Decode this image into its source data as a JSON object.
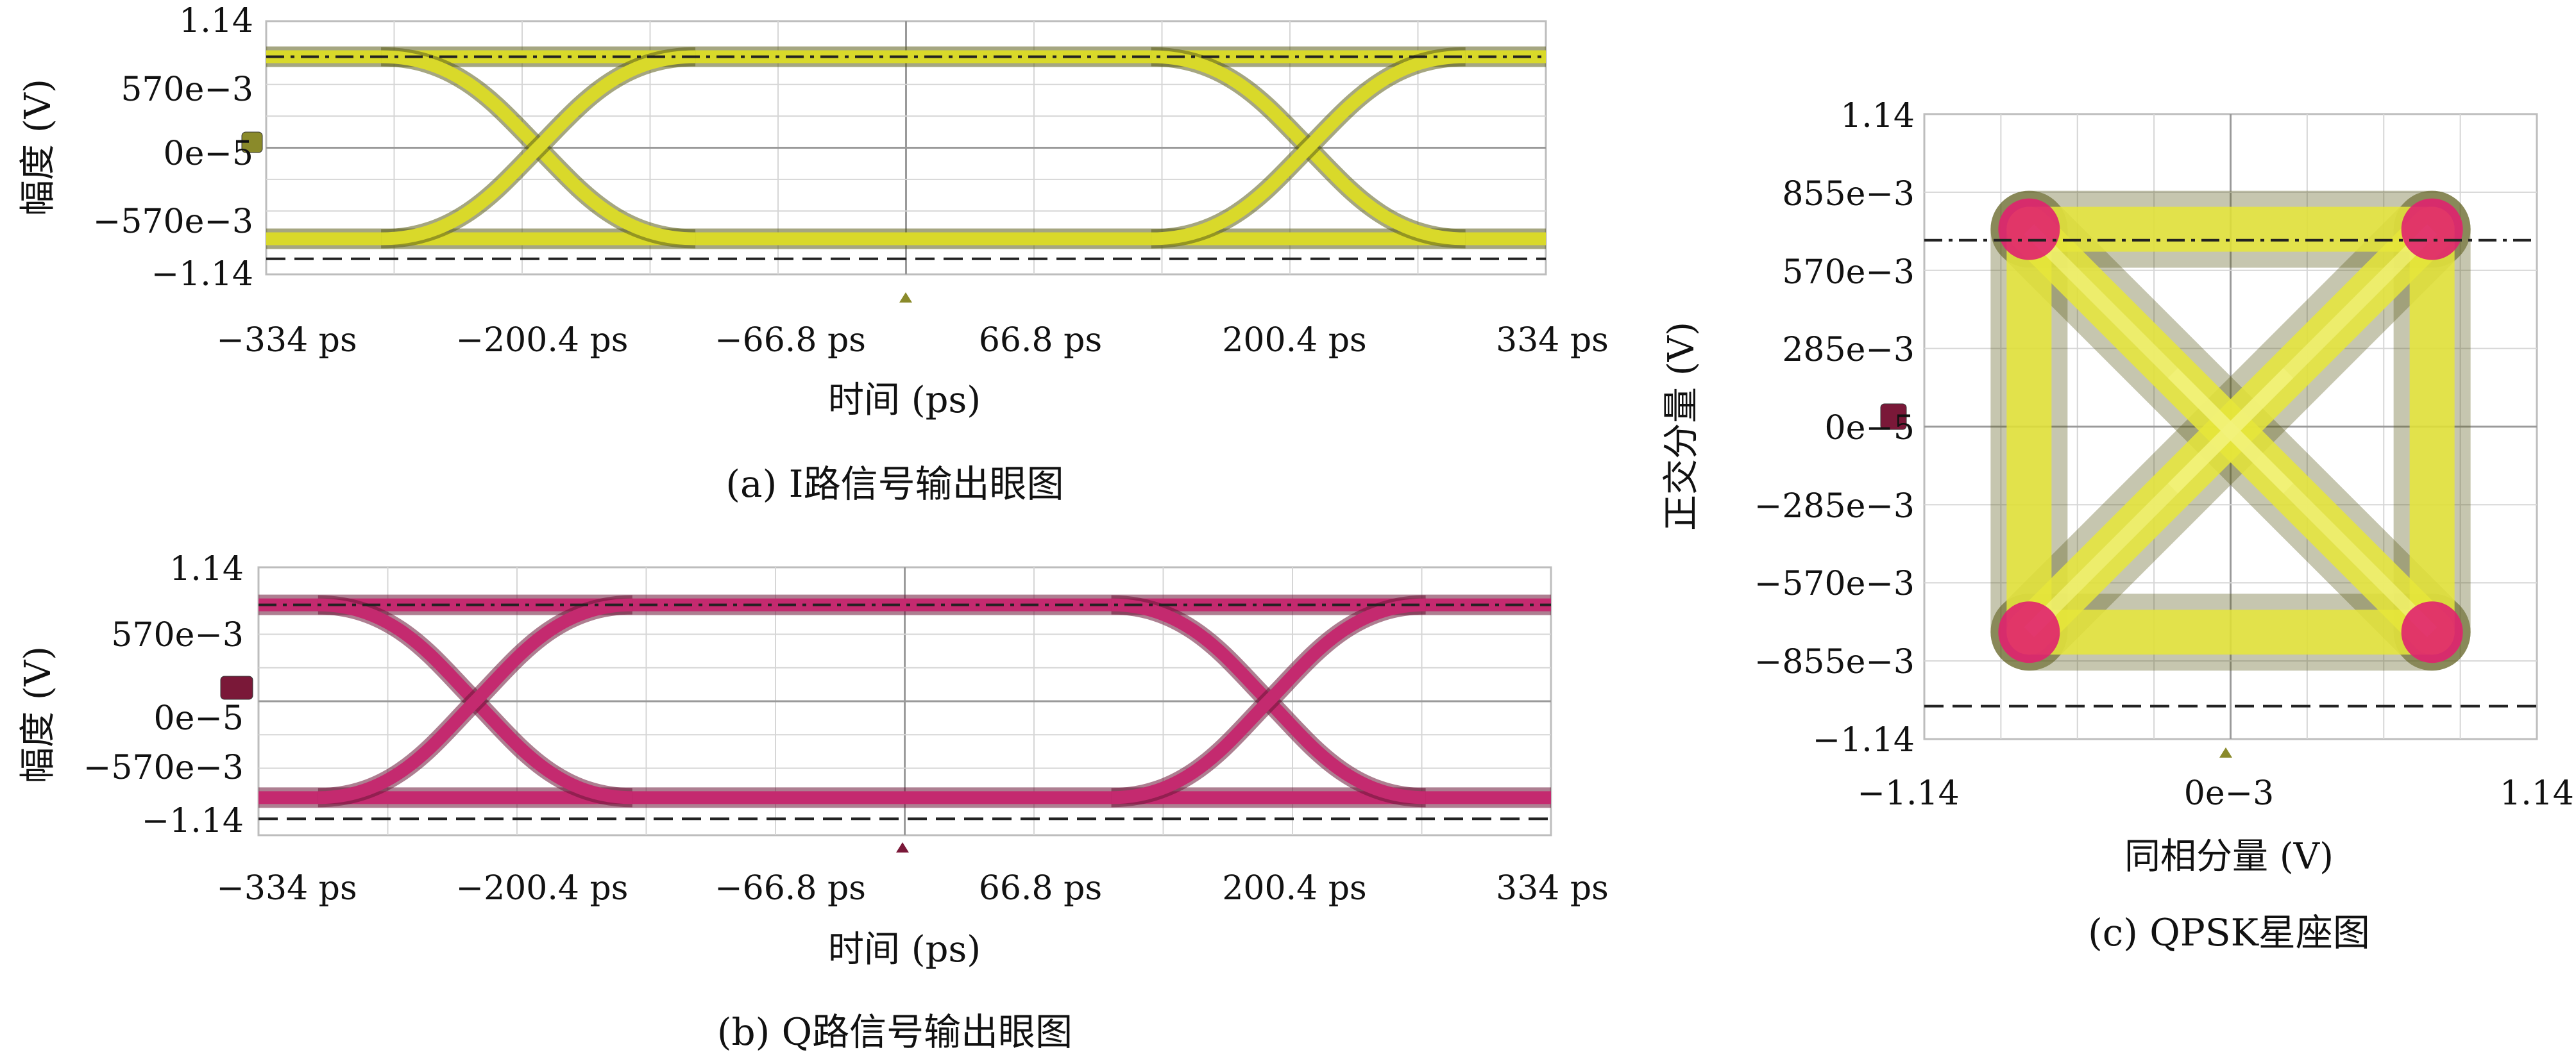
{
  "colors": {
    "eye_i": "#d9d92a",
    "eye_i_dark": "#5b5c1a",
    "eye_q": "#c42a6f",
    "eye_q_dark": "#6a1537",
    "constellation_fill": "#e6e63a",
    "constellation_edge": "#5b5c1a",
    "constellation_points": "#e0226e",
    "marker_i": "#8a8a2a",
    "marker_q": "#7a1838"
  },
  "chart_data": [
    {
      "id": "eye_i",
      "type": "eye_diagram",
      "caption": "(a) I路信号输出眼图",
      "xlabel": "时间 (ps)",
      "ylabel": "幅度 (V)",
      "xticks": [
        "−334 ps",
        "−200.4 ps",
        "−66.8 ps",
        "66.8 ps",
        "200.4 ps",
        "334 ps"
      ],
      "yticks": [
        "1.14",
        "570e−3",
        "0e−5",
        "−570e−3",
        "−1.14"
      ],
      "xlim": [
        -334,
        334
      ],
      "ylim": [
        -1.14,
        1.14
      ],
      "levels": [
        0.82,
        -0.82
      ],
      "crossings_ps": [
        -192,
        210
      ],
      "ref_lines": [
        {
          "y": 0.82,
          "style": "dashdot"
        },
        {
          "y": -1.0,
          "style": "dashed"
        }
      ],
      "grid": true
    },
    {
      "id": "eye_q",
      "type": "eye_diagram",
      "caption": "(b) Q路信号输出眼图",
      "xlabel": "时间 (ps)",
      "ylabel": "幅度 (V)",
      "xticks": [
        "−334 ps",
        "−200.4 ps",
        "−66.8 ps",
        "66.8 ps",
        "200.4 ps",
        "334 ps"
      ],
      "yticks": [
        "1.14",
        "570e−3",
        "0e−5",
        "−570e−3",
        "−1.14"
      ],
      "xlim": [
        -334,
        334
      ],
      "ylim": [
        -1.14,
        1.14
      ],
      "levels": [
        0.82,
        -0.82
      ],
      "crossings_ps": [
        -222,
        188
      ],
      "ref_lines": [
        {
          "y": 0.82,
          "style": "dashdot"
        },
        {
          "y": -1.0,
          "style": "dashed"
        }
      ],
      "grid": true
    },
    {
      "id": "constellation",
      "type": "scatter",
      "caption": "(c) QPSK星座图",
      "xlabel": "同相分量 (V)",
      "ylabel": "正交分量 (V)",
      "xticks": [
        "−1.14",
        "0e−3",
        "1.14"
      ],
      "yticks": [
        "1.14",
        "855e−3",
        "570e−3",
        "285e−3",
        "0e−5",
        "−285e−3",
        "−570e−3",
        "−855e−3",
        "−1.14"
      ],
      "xlim": [
        -1.14,
        1.14
      ],
      "ylim": [
        -1.14,
        1.14
      ],
      "points": [
        {
          "x": -0.75,
          "y": 0.72
        },
        {
          "x": 0.75,
          "y": 0.72
        },
        {
          "x": -0.75,
          "y": -0.75
        },
        {
          "x": 0.75,
          "y": -0.75
        }
      ],
      "ref_lines": [
        {
          "y": 0.68,
          "style": "dashdot"
        },
        {
          "y": -1.02,
          "style": "dashed"
        }
      ],
      "grid": true
    }
  ]
}
